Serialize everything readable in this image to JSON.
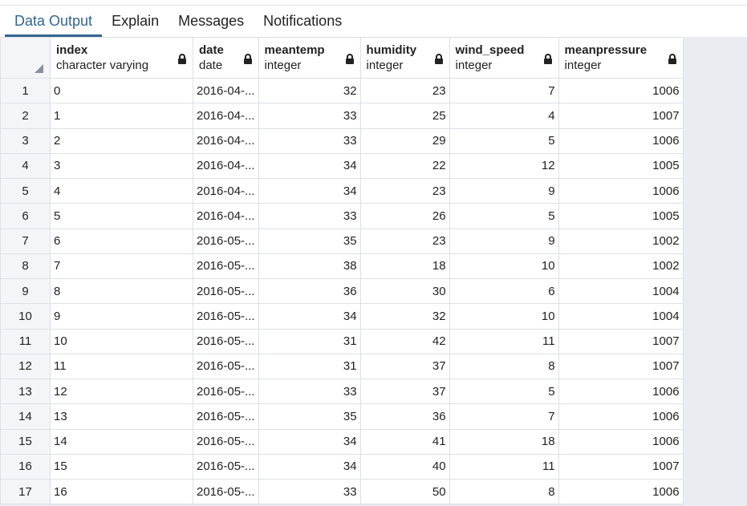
{
  "tabs": [
    {
      "label": "Data Output",
      "active": true
    },
    {
      "label": "Explain",
      "active": false
    },
    {
      "label": "Messages",
      "active": false
    },
    {
      "label": "Notifications",
      "active": false
    }
  ],
  "columns": [
    {
      "name": "index",
      "type": "character varying",
      "icon": "lock-icon"
    },
    {
      "name": "date",
      "type": "date",
      "icon": "lock-icon"
    },
    {
      "name": "meantemp",
      "type": "integer",
      "icon": "lock-icon"
    },
    {
      "name": "humidity",
      "type": "integer",
      "icon": "lock-icon"
    },
    {
      "name": "wind_speed",
      "type": "integer",
      "icon": "lock-icon"
    },
    {
      "name": "meanpressure",
      "type": "integer",
      "icon": "lock-icon"
    }
  ],
  "rows": [
    {
      "n": "1",
      "index": "0",
      "date": "2016-04-...",
      "meantemp": "32",
      "humidity": "23",
      "wind_speed": "7",
      "meanpressure": "1006"
    },
    {
      "n": "2",
      "index": "1",
      "date": "2016-04-...",
      "meantemp": "33",
      "humidity": "25",
      "wind_speed": "4",
      "meanpressure": "1007"
    },
    {
      "n": "3",
      "index": "2",
      "date": "2016-04-...",
      "meantemp": "33",
      "humidity": "29",
      "wind_speed": "5",
      "meanpressure": "1006"
    },
    {
      "n": "4",
      "index": "3",
      "date": "2016-04-...",
      "meantemp": "34",
      "humidity": "22",
      "wind_speed": "12",
      "meanpressure": "1005"
    },
    {
      "n": "5",
      "index": "4",
      "date": "2016-04-...",
      "meantemp": "34",
      "humidity": "23",
      "wind_speed": "9",
      "meanpressure": "1006"
    },
    {
      "n": "6",
      "index": "5",
      "date": "2016-04-...",
      "meantemp": "33",
      "humidity": "26",
      "wind_speed": "5",
      "meanpressure": "1005"
    },
    {
      "n": "7",
      "index": "6",
      "date": "2016-05-...",
      "meantemp": "35",
      "humidity": "23",
      "wind_speed": "9",
      "meanpressure": "1002"
    },
    {
      "n": "8",
      "index": "7",
      "date": "2016-05-...",
      "meantemp": "38",
      "humidity": "18",
      "wind_speed": "10",
      "meanpressure": "1002"
    },
    {
      "n": "9",
      "index": "8",
      "date": "2016-05-...",
      "meantemp": "36",
      "humidity": "30",
      "wind_speed": "6",
      "meanpressure": "1004"
    },
    {
      "n": "10",
      "index": "9",
      "date": "2016-05-...",
      "meantemp": "34",
      "humidity": "32",
      "wind_speed": "10",
      "meanpressure": "1004"
    },
    {
      "n": "11",
      "index": "10",
      "date": "2016-05-...",
      "meantemp": "31",
      "humidity": "42",
      "wind_speed": "11",
      "meanpressure": "1007"
    },
    {
      "n": "12",
      "index": "11",
      "date": "2016-05-...",
      "meantemp": "31",
      "humidity": "37",
      "wind_speed": "8",
      "meanpressure": "1007"
    },
    {
      "n": "13",
      "index": "12",
      "date": "2016-05-...",
      "meantemp": "33",
      "humidity": "37",
      "wind_speed": "5",
      "meanpressure": "1006"
    },
    {
      "n": "14",
      "index": "13",
      "date": "2016-05-...",
      "meantemp": "35",
      "humidity": "36",
      "wind_speed": "7",
      "meanpressure": "1006"
    },
    {
      "n": "15",
      "index": "14",
      "date": "2016-05-...",
      "meantemp": "34",
      "humidity": "41",
      "wind_speed": "18",
      "meanpressure": "1006"
    },
    {
      "n": "16",
      "index": "15",
      "date": "2016-05-...",
      "meantemp": "34",
      "humidity": "40",
      "wind_speed": "11",
      "meanpressure": "1007"
    },
    {
      "n": "17",
      "index": "16",
      "date": "2016-05-...",
      "meantemp": "33",
      "humidity": "50",
      "wind_speed": "8",
      "meanpressure": "1006"
    }
  ],
  "colors": {
    "accent": "#326690",
    "rowheader_bg": "#f3f5f8",
    "grid_line": "#dde0e6",
    "empty_bg": "#e9ecf0"
  }
}
